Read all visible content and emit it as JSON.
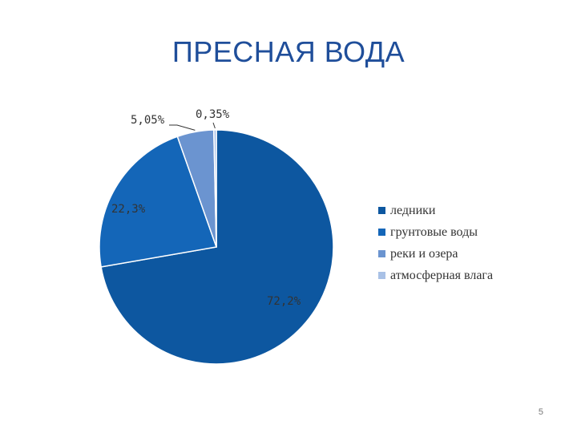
{
  "slide": {
    "title": "ПРЕСНАЯ ВОДА",
    "page_number": "5"
  },
  "chart_data": {
    "type": "pie",
    "title": "",
    "categories": [
      "ледники",
      "грунтовые воды",
      "реки и озера",
      "атмосферная влага"
    ],
    "values": [
      72.2,
      22.3,
      5.05,
      0.35
    ],
    "labels": [
      "72,2%",
      "22,3%",
      "5,05%",
      "0,35%"
    ],
    "colors": [
      "#0D57A0",
      "#1466B8",
      "#6B94D0",
      "#A9C1E6"
    ],
    "legend": "right"
  }
}
